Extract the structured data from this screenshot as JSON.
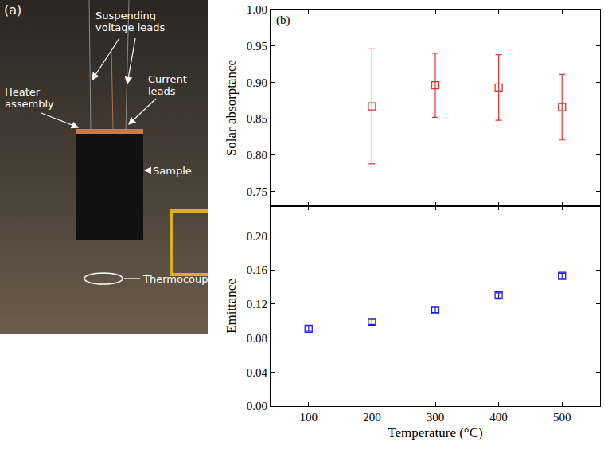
{
  "panel_a": {
    "letter": "(a)",
    "labels": {
      "suspending": "Suspending voltage leads",
      "heater": "Heater assembly",
      "current": "Current leads",
      "sample": "Sample",
      "thermocouple": "Thermocouple"
    }
  },
  "chart_data": [
    {
      "type": "scatter",
      "annotations": [
        "(b)"
      ],
      "y_label": "Solar absorptance",
      "x": [
        200,
        300,
        400,
        500
      ],
      "values": [
        0.867,
        0.896,
        0.893,
        0.866
      ],
      "error": [
        0.079,
        0.044,
        0.045,
        0.045
      ],
      "color": "#e8312f",
      "marker": "square-open",
      "xlim": [
        40,
        560
      ],
      "xticks": [
        100,
        200,
        300,
        400,
        500
      ],
      "ylim": [
        0.73,
        1.0
      ],
      "yticks": [
        0.75,
        {
          "value": 0.8,
          "label": "0.80"
        },
        0.85,
        {
          "value": 0.9,
          "label": "0.90"
        },
        0.95,
        {
          "value": 1,
          "label": "1.00"
        }
      ],
      "tick_labels": "y",
      "grid": false
    },
    {
      "type": "scatter",
      "x_label": "Temperature (°C)",
      "y_label": "Emittance",
      "x": [
        100,
        200,
        300,
        400,
        500
      ],
      "values": [
        0.091,
        0.099,
        0.113,
        0.13,
        0.153
      ],
      "error": [
        0.003,
        0.003,
        0.003,
        0.003,
        0.003
      ],
      "color": "#1f1fd6",
      "marker": "square-open",
      "xlim": [
        40,
        560
      ],
      "xticks": [
        100,
        200,
        300,
        400,
        500
      ],
      "ylim": [
        0,
        0.235
      ],
      "yticks": [
        {
          "value": 0,
          "label": "0.00"
        },
        0.04,
        0.08,
        0.12,
        0.16,
        {
          "value": 0.2,
          "label": "0.20"
        }
      ],
      "grid": false
    }
  ]
}
